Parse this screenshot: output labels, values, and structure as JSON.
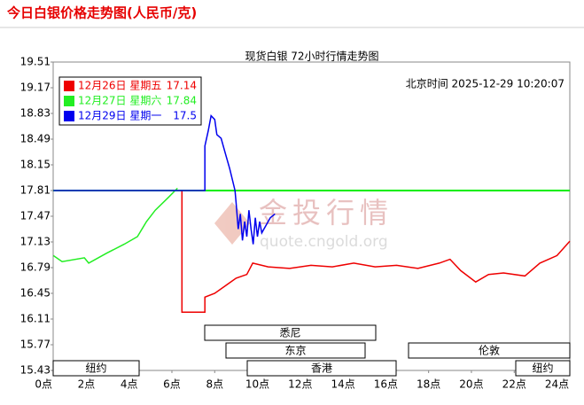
{
  "header": {
    "title": "今日白银价格走势图(人民币/克)"
  },
  "chart_data": {
    "type": "line",
    "title": "现货白银 72小时行情走势图",
    "timestamp": "北京时间 2025-12-29 10:20:07",
    "watermark": {
      "brand": "金投行情",
      "url": "quote.cngold.org"
    },
    "xlim": [
      0.45,
      24.6
    ],
    "xticks": [
      {
        "value": 0,
        "label": "0点"
      },
      {
        "value": 2,
        "label": "2点"
      },
      {
        "value": 4,
        "label": "4点"
      },
      {
        "value": 6,
        "label": "6点"
      },
      {
        "value": 8,
        "label": "8点"
      },
      {
        "value": 10,
        "label": "10点"
      },
      {
        "value": 12,
        "label": "12点"
      },
      {
        "value": 14,
        "label": "14点"
      },
      {
        "value": 16,
        "label": "16点"
      },
      {
        "value": 18,
        "label": "18点"
      },
      {
        "value": 20,
        "label": "20点"
      },
      {
        "value": 22,
        "label": "22点"
      },
      {
        "value": 24,
        "label": "24点"
      }
    ],
    "ylim": [
      15.43,
      19.51
    ],
    "yticks": [
      19.51,
      19.17,
      18.83,
      18.49,
      18.15,
      17.81,
      17.47,
      17.13,
      16.79,
      16.45,
      16.11,
      15.77,
      15.43
    ],
    "baseline": {
      "value": 17.81,
      "color": "#00ee00"
    },
    "legend": "top-left",
    "series": [
      {
        "name": "12月26日 星期五",
        "last": 17.14,
        "color": "#ee0000",
        "x": [
          6.47,
          6.47,
          7.54,
          7.54,
          8.0,
          8.5,
          9.0,
          9.5,
          9.78,
          10.5,
          11.5,
          12.5,
          13.5,
          14.5,
          15.5,
          16.5,
          17.5,
          18.5,
          19.0,
          19.5,
          20.2,
          20.8,
          21.5,
          22.5,
          23.2,
          24.0,
          24.6
        ],
        "values": [
          17.81,
          16.2,
          16.2,
          16.4,
          16.45,
          16.55,
          16.65,
          16.7,
          16.85,
          16.8,
          16.78,
          16.82,
          16.8,
          16.85,
          16.8,
          16.82,
          16.78,
          16.85,
          16.9,
          16.75,
          16.6,
          16.7,
          16.72,
          16.68,
          16.85,
          16.95,
          17.14
        ]
      },
      {
        "name": "12月27日 星期六",
        "last": 17.84,
        "color": "#22ee22",
        "x": [
          0.46,
          0.87,
          1.91,
          2.11,
          2.94,
          3.77,
          4.39,
          4.81,
          5.22,
          5.84,
          6.26
        ],
        "values": [
          16.95,
          16.87,
          16.92,
          16.85,
          16.98,
          17.1,
          17.2,
          17.4,
          17.55,
          17.72,
          17.84
        ]
      },
      {
        "name": "12月29日 星期一",
        "last": 17.5,
        "color": "#0000ee",
        "x": [
          0.46,
          7.54,
          7.54,
          7.7,
          7.83,
          8.0,
          8.1,
          8.3,
          8.5,
          8.7,
          8.95,
          9.0,
          9.1,
          9.2,
          9.3,
          9.4,
          9.5,
          9.6,
          9.7,
          9.8,
          9.9,
          10.0,
          10.1,
          10.2,
          10.4,
          10.6,
          10.82
        ],
        "values": [
          17.81,
          17.81,
          18.4,
          18.6,
          18.8,
          18.75,
          18.55,
          18.5,
          18.3,
          18.1,
          17.81,
          17.65,
          17.3,
          17.5,
          17.15,
          17.4,
          17.2,
          17.55,
          17.3,
          17.1,
          17.45,
          17.2,
          17.4,
          17.25,
          17.35,
          17.45,
          17.5
        ]
      }
    ],
    "sessions": [
      "悉尼",
      "东京",
      "香港",
      "纽约",
      "伦敦",
      "纽约"
    ]
  }
}
